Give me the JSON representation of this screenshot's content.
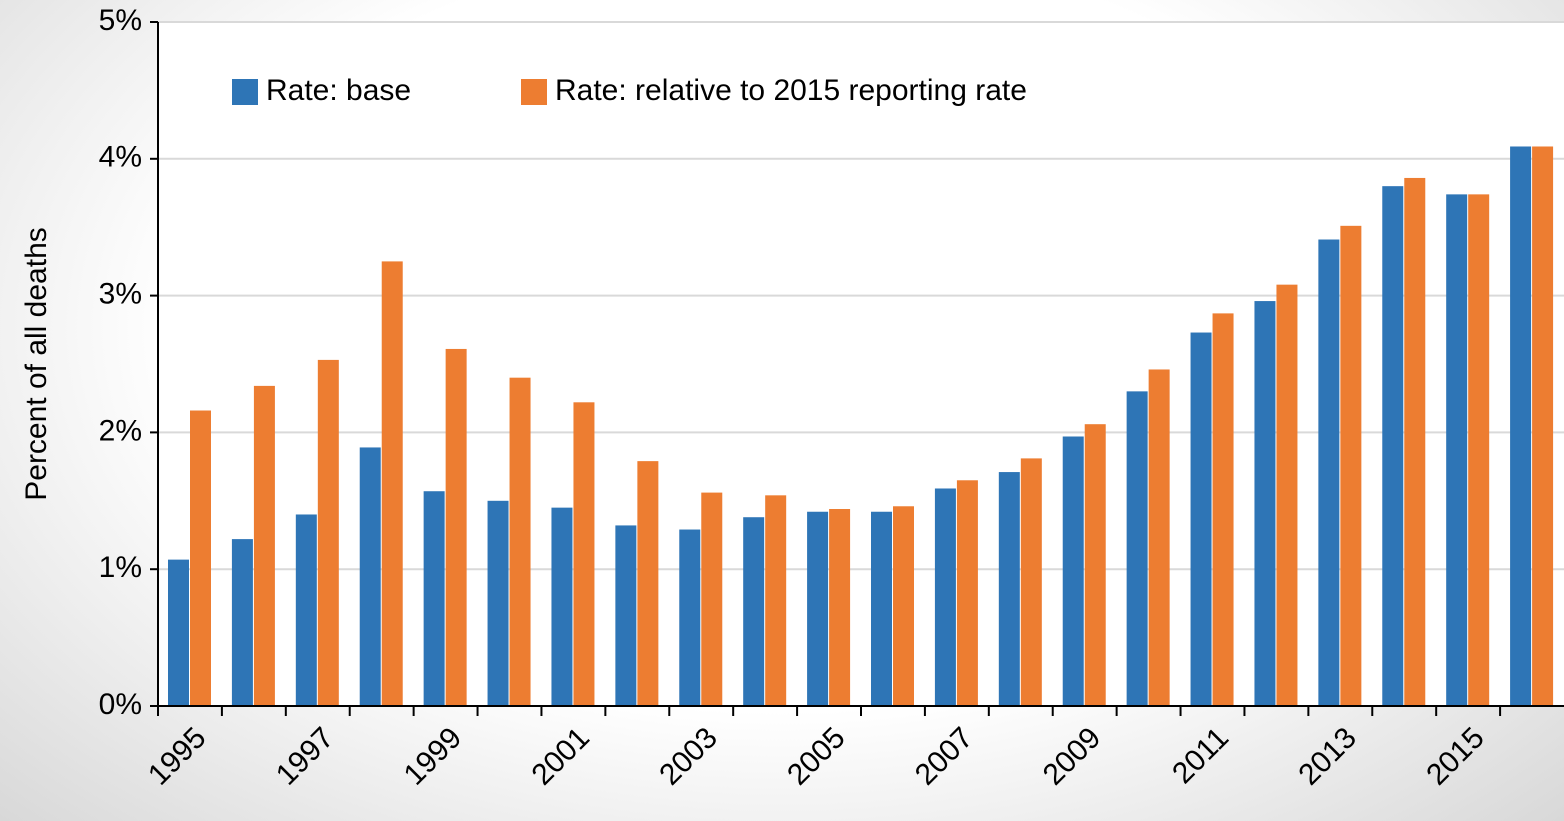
{
  "chart_data": {
    "type": "bar",
    "y_label": "Percent of all deaths",
    "categories": [
      "1995",
      null,
      "1997",
      null,
      "1999",
      null,
      "2001",
      null,
      "2003",
      null,
      "2005",
      null,
      "2007",
      null,
      "2009",
      null,
      "2011",
      null,
      "2013",
      null,
      "2015",
      null
    ],
    "series": [
      {
        "name": "Rate: base",
        "color": "#2e75b6",
        "values": [
          1.07,
          1.22,
          1.4,
          1.89,
          1.57,
          1.5,
          1.45,
          1.32,
          1.29,
          1.38,
          1.42,
          1.42,
          1.59,
          1.71,
          1.97,
          2.3,
          2.73,
          2.96,
          3.41,
          3.8,
          3.74,
          4.09
        ]
      },
      {
        "name": "Rate: relative to 2015 reporting rate",
        "color": "#ed7d31",
        "values": [
          2.16,
          2.34,
          2.53,
          3.25,
          2.61,
          2.4,
          2.22,
          1.79,
          1.56,
          1.54,
          1.44,
          1.46,
          1.65,
          1.81,
          2.06,
          2.46,
          2.87,
          3.08,
          3.51,
          3.86,
          3.74,
          4.09
        ]
      }
    ],
    "ylim": [
      0,
      5
    ],
    "yticks": [
      {
        "value": 0,
        "label": "0%"
      },
      {
        "value": 1,
        "label": "1%"
      },
      {
        "value": 2,
        "label": "2%"
      },
      {
        "value": 3,
        "label": "3%"
      },
      {
        "value": 4,
        "label": "4%"
      },
      {
        "value": 5,
        "label": "5%"
      }
    ],
    "grid": true,
    "legend": "top-left"
  }
}
